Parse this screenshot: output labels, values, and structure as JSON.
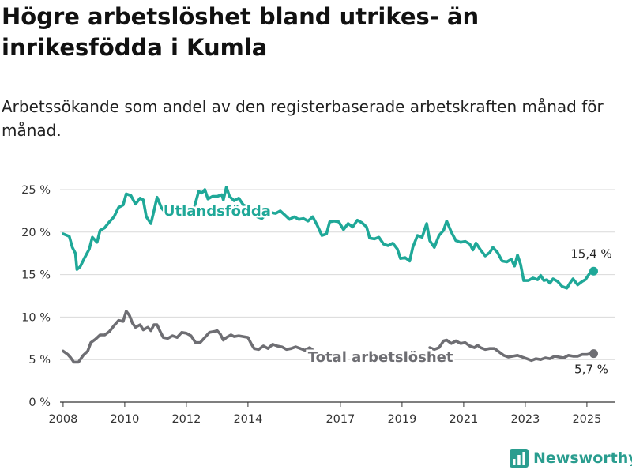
{
  "title": "Högre arbetslöshet bland utrikes- än inrikesfödda i Kumla",
  "subtitle": "Arbetssökande som andel av den registerbaserade arbetskraften månad för månad.",
  "brand": {
    "name": "Newsworthy",
    "icon": "bar-chart-logo-icon"
  },
  "chart_data": {
    "type": "line",
    "title": "",
    "xlabel": "",
    "ylabel": "",
    "ylim": [
      0,
      25
    ],
    "xlim": [
      2007.9,
      2025.9
    ],
    "grid": "horizontal",
    "x_ticks": [
      {
        "value": 2008,
        "label": "2008"
      },
      {
        "value": 2010,
        "label": "2010"
      },
      {
        "value": 2012,
        "label": "2012"
      },
      {
        "value": 2014,
        "label": "2014"
      },
      {
        "value": 2017,
        "label": "2017"
      },
      {
        "value": 2019,
        "label": "2019"
      },
      {
        "value": 2021,
        "label": "2021"
      },
      {
        "value": 2023,
        "label": "2023"
      },
      {
        "value": 2025,
        "label": "2025"
      }
    ],
    "y_ticks": [
      {
        "value": 0,
        "label": "0 %"
      },
      {
        "value": 5,
        "label": "5 %"
      },
      {
        "value": 10,
        "label": "10 %"
      },
      {
        "value": 15,
        "label": "15 %"
      },
      {
        "value": 20,
        "label": "20 %"
      },
      {
        "value": 25,
        "label": "25 %"
      }
    ],
    "series": [
      {
        "name": "Utlandsfödda",
        "color": "#1fa898",
        "end_label": "15,4 %",
        "points": [
          [
            2008.0,
            19.8
          ],
          [
            2008.2,
            19.5
          ],
          [
            2008.3,
            18.2
          ],
          [
            2008.4,
            17.5
          ],
          [
            2008.45,
            15.6
          ],
          [
            2008.55,
            15.9
          ],
          [
            2008.7,
            17.0
          ],
          [
            2008.85,
            18.0
          ],
          [
            2008.95,
            19.4
          ],
          [
            2009.1,
            18.8
          ],
          [
            2009.2,
            20.2
          ],
          [
            2009.35,
            20.5
          ],
          [
            2009.5,
            21.2
          ],
          [
            2009.65,
            21.8
          ],
          [
            2009.8,
            22.9
          ],
          [
            2009.95,
            23.2
          ],
          [
            2010.05,
            24.5
          ],
          [
            2010.2,
            24.3
          ],
          [
            2010.35,
            23.3
          ],
          [
            2010.5,
            24.0
          ],
          [
            2010.6,
            23.8
          ],
          [
            2010.7,
            21.8
          ],
          [
            2010.85,
            21.0
          ],
          [
            2010.95,
            22.5
          ],
          [
            2011.05,
            24.1
          ],
          [
            2011.2,
            22.8
          ],
          [
            2011.35,
            22.2
          ],
          [
            2011.5,
            23.0
          ],
          [
            2011.65,
            22.6
          ],
          [
            2011.8,
            22.8
          ],
          [
            2011.95,
            22.2
          ],
          [
            2012.1,
            22.6
          ],
          [
            2012.25,
            22.8
          ],
          [
            2012.4,
            24.8
          ],
          [
            2012.5,
            24.6
          ],
          [
            2012.6,
            25.0
          ],
          [
            2012.7,
            23.9
          ],
          [
            2012.85,
            24.2
          ],
          [
            2013.0,
            24.2
          ],
          [
            2013.15,
            24.4
          ],
          [
            2013.2,
            23.8
          ],
          [
            2013.3,
            25.3
          ],
          [
            2013.4,
            24.2
          ],
          [
            2013.55,
            23.7
          ],
          [
            2013.7,
            24.0
          ],
          [
            2013.85,
            23.2
          ],
          [
            2014.0,
            23.0
          ],
          [
            2014.15,
            22.4
          ],
          [
            2014.3,
            21.8
          ],
          [
            2014.45,
            21.6
          ],
          [
            2014.6,
            22.1
          ],
          [
            2014.75,
            22.3
          ],
          [
            2014.9,
            22.2
          ],
          [
            2015.05,
            22.5
          ],
          [
            2015.2,
            22.0
          ],
          [
            2015.35,
            21.5
          ],
          [
            2015.5,
            21.8
          ],
          [
            2015.65,
            21.5
          ],
          [
            2015.8,
            21.6
          ],
          [
            2015.95,
            21.3
          ],
          [
            2016.1,
            21.8
          ],
          [
            2016.25,
            20.8
          ],
          [
            2016.4,
            19.6
          ],
          [
            2016.55,
            19.8
          ],
          [
            2016.65,
            21.2
          ],
          [
            2016.8,
            21.3
          ],
          [
            2016.95,
            21.2
          ],
          [
            2017.1,
            20.3
          ],
          [
            2017.25,
            21.0
          ],
          [
            2017.4,
            20.6
          ],
          [
            2017.55,
            21.4
          ],
          [
            2017.7,
            21.1
          ],
          [
            2017.85,
            20.6
          ],
          [
            2017.95,
            19.3
          ],
          [
            2018.1,
            19.2
          ],
          [
            2018.25,
            19.4
          ],
          [
            2018.4,
            18.6
          ],
          [
            2018.55,
            18.4
          ],
          [
            2018.7,
            18.7
          ],
          [
            2018.85,
            18.0
          ],
          [
            2018.95,
            16.9
          ],
          [
            2019.1,
            17.0
          ],
          [
            2019.25,
            16.6
          ],
          [
            2019.35,
            18.2
          ],
          [
            2019.5,
            19.6
          ],
          [
            2019.65,
            19.4
          ],
          [
            2019.8,
            21.0
          ],
          [
            2019.9,
            19.0
          ],
          [
            2020.05,
            18.2
          ],
          [
            2020.2,
            19.6
          ],
          [
            2020.35,
            20.2
          ],
          [
            2020.45,
            21.3
          ],
          [
            2020.6,
            20.0
          ],
          [
            2020.75,
            19.0
          ],
          [
            2020.9,
            18.8
          ],
          [
            2021.05,
            18.9
          ],
          [
            2021.2,
            18.6
          ],
          [
            2021.3,
            17.9
          ],
          [
            2021.4,
            18.7
          ],
          [
            2021.55,
            17.9
          ],
          [
            2021.7,
            17.2
          ],
          [
            2021.85,
            17.6
          ],
          [
            2021.95,
            18.2
          ],
          [
            2022.1,
            17.6
          ],
          [
            2022.25,
            16.6
          ],
          [
            2022.4,
            16.5
          ],
          [
            2022.55,
            16.8
          ],
          [
            2022.65,
            16.0
          ],
          [
            2022.75,
            17.3
          ],
          [
            2022.85,
            16.2
          ],
          [
            2022.95,
            14.3
          ],
          [
            2023.1,
            14.3
          ],
          [
            2023.25,
            14.6
          ],
          [
            2023.4,
            14.4
          ],
          [
            2023.5,
            14.9
          ],
          [
            2023.6,
            14.3
          ],
          [
            2023.7,
            14.4
          ],
          [
            2023.8,
            14.0
          ],
          [
            2023.9,
            14.5
          ],
          [
            2024.05,
            14.2
          ],
          [
            2024.2,
            13.6
          ],
          [
            2024.35,
            13.4
          ],
          [
            2024.45,
            14.0
          ],
          [
            2024.55,
            14.5
          ],
          [
            2024.7,
            13.8
          ],
          [
            2024.85,
            14.2
          ],
          [
            2024.95,
            14.4
          ],
          [
            2025.1,
            15.2
          ],
          [
            2025.22,
            15.4
          ]
        ]
      },
      {
        "name": "Total arbetslöshet",
        "color": "#6e6e73",
        "end_label": "5,7 %",
        "points": [
          [
            2008.0,
            6.0
          ],
          [
            2008.15,
            5.6
          ],
          [
            2008.25,
            5.2
          ],
          [
            2008.35,
            4.7
          ],
          [
            2008.5,
            4.7
          ],
          [
            2008.65,
            5.5
          ],
          [
            2008.8,
            6.0
          ],
          [
            2008.9,
            7.0
          ],
          [
            2009.05,
            7.4
          ],
          [
            2009.2,
            7.9
          ],
          [
            2009.35,
            7.9
          ],
          [
            2009.5,
            8.3
          ],
          [
            2009.65,
            9.0
          ],
          [
            2009.8,
            9.6
          ],
          [
            2009.95,
            9.5
          ],
          [
            2010.05,
            10.7
          ],
          [
            2010.15,
            10.2
          ],
          [
            2010.25,
            9.3
          ],
          [
            2010.35,
            8.8
          ],
          [
            2010.5,
            9.1
          ],
          [
            2010.6,
            8.5
          ],
          [
            2010.75,
            8.8
          ],
          [
            2010.85,
            8.4
          ],
          [
            2010.95,
            9.1
          ],
          [
            2011.05,
            9.1
          ],
          [
            2011.15,
            8.3
          ],
          [
            2011.25,
            7.6
          ],
          [
            2011.4,
            7.5
          ],
          [
            2011.55,
            7.8
          ],
          [
            2011.7,
            7.6
          ],
          [
            2011.85,
            8.2
          ],
          [
            2012.0,
            8.1
          ],
          [
            2012.15,
            7.8
          ],
          [
            2012.3,
            7.0
          ],
          [
            2012.45,
            7.0
          ],
          [
            2012.6,
            7.6
          ],
          [
            2012.75,
            8.2
          ],
          [
            2012.9,
            8.3
          ],
          [
            2013.0,
            8.4
          ],
          [
            2013.1,
            8.0
          ],
          [
            2013.2,
            7.3
          ],
          [
            2013.3,
            7.6
          ],
          [
            2013.45,
            7.9
          ],
          [
            2013.55,
            7.7
          ],
          [
            2013.7,
            7.8
          ],
          [
            2013.85,
            7.7
          ],
          [
            2014.0,
            7.6
          ],
          [
            2014.1,
            6.9
          ],
          [
            2014.2,
            6.3
          ],
          [
            2014.35,
            6.2
          ],
          [
            2014.5,
            6.6
          ],
          [
            2014.65,
            6.3
          ],
          [
            2014.8,
            6.8
          ],
          [
            2014.95,
            6.6
          ],
          [
            2015.1,
            6.5
          ],
          [
            2015.25,
            6.2
          ],
          [
            2015.4,
            6.3
          ],
          [
            2015.55,
            6.5
          ],
          [
            2015.7,
            6.3
          ],
          [
            2015.85,
            6.1
          ],
          [
            2016.0,
            6.4
          ],
          [
            2016.15,
            6.0
          ],
          [
            2016.3,
            5.3
          ],
          [
            2016.45,
            5.2
          ],
          [
            2016.6,
            5.4
          ],
          [
            2016.75,
            5.4
          ],
          [
            2019.9,
            6.4
          ],
          [
            2020.05,
            6.2
          ],
          [
            2020.2,
            6.4
          ],
          [
            2020.35,
            7.2
          ],
          [
            2020.45,
            7.3
          ],
          [
            2020.6,
            6.9
          ],
          [
            2020.75,
            7.2
          ],
          [
            2020.9,
            6.9
          ],
          [
            2021.05,
            7.0
          ],
          [
            2021.2,
            6.6
          ],
          [
            2021.35,
            6.4
          ],
          [
            2021.45,
            6.7
          ],
          [
            2021.55,
            6.4
          ],
          [
            2021.7,
            6.2
          ],
          [
            2021.85,
            6.3
          ],
          [
            2022.0,
            6.3
          ],
          [
            2022.15,
            5.9
          ],
          [
            2022.3,
            5.5
          ],
          [
            2022.45,
            5.3
          ],
          [
            2022.6,
            5.4
          ],
          [
            2022.75,
            5.5
          ],
          [
            2022.9,
            5.3
          ],
          [
            2023.05,
            5.1
          ],
          [
            2023.2,
            4.9
          ],
          [
            2023.35,
            5.1
          ],
          [
            2023.5,
            5.0
          ],
          [
            2023.65,
            5.2
          ],
          [
            2023.8,
            5.1
          ],
          [
            2023.95,
            5.4
          ],
          [
            2024.1,
            5.3
          ],
          [
            2024.25,
            5.2
          ],
          [
            2024.4,
            5.5
          ],
          [
            2024.55,
            5.4
          ],
          [
            2024.7,
            5.4
          ],
          [
            2024.85,
            5.6
          ],
          [
            2025.0,
            5.6
          ],
          [
            2025.1,
            5.7
          ],
          [
            2025.22,
            5.7
          ]
        ]
      }
    ]
  }
}
